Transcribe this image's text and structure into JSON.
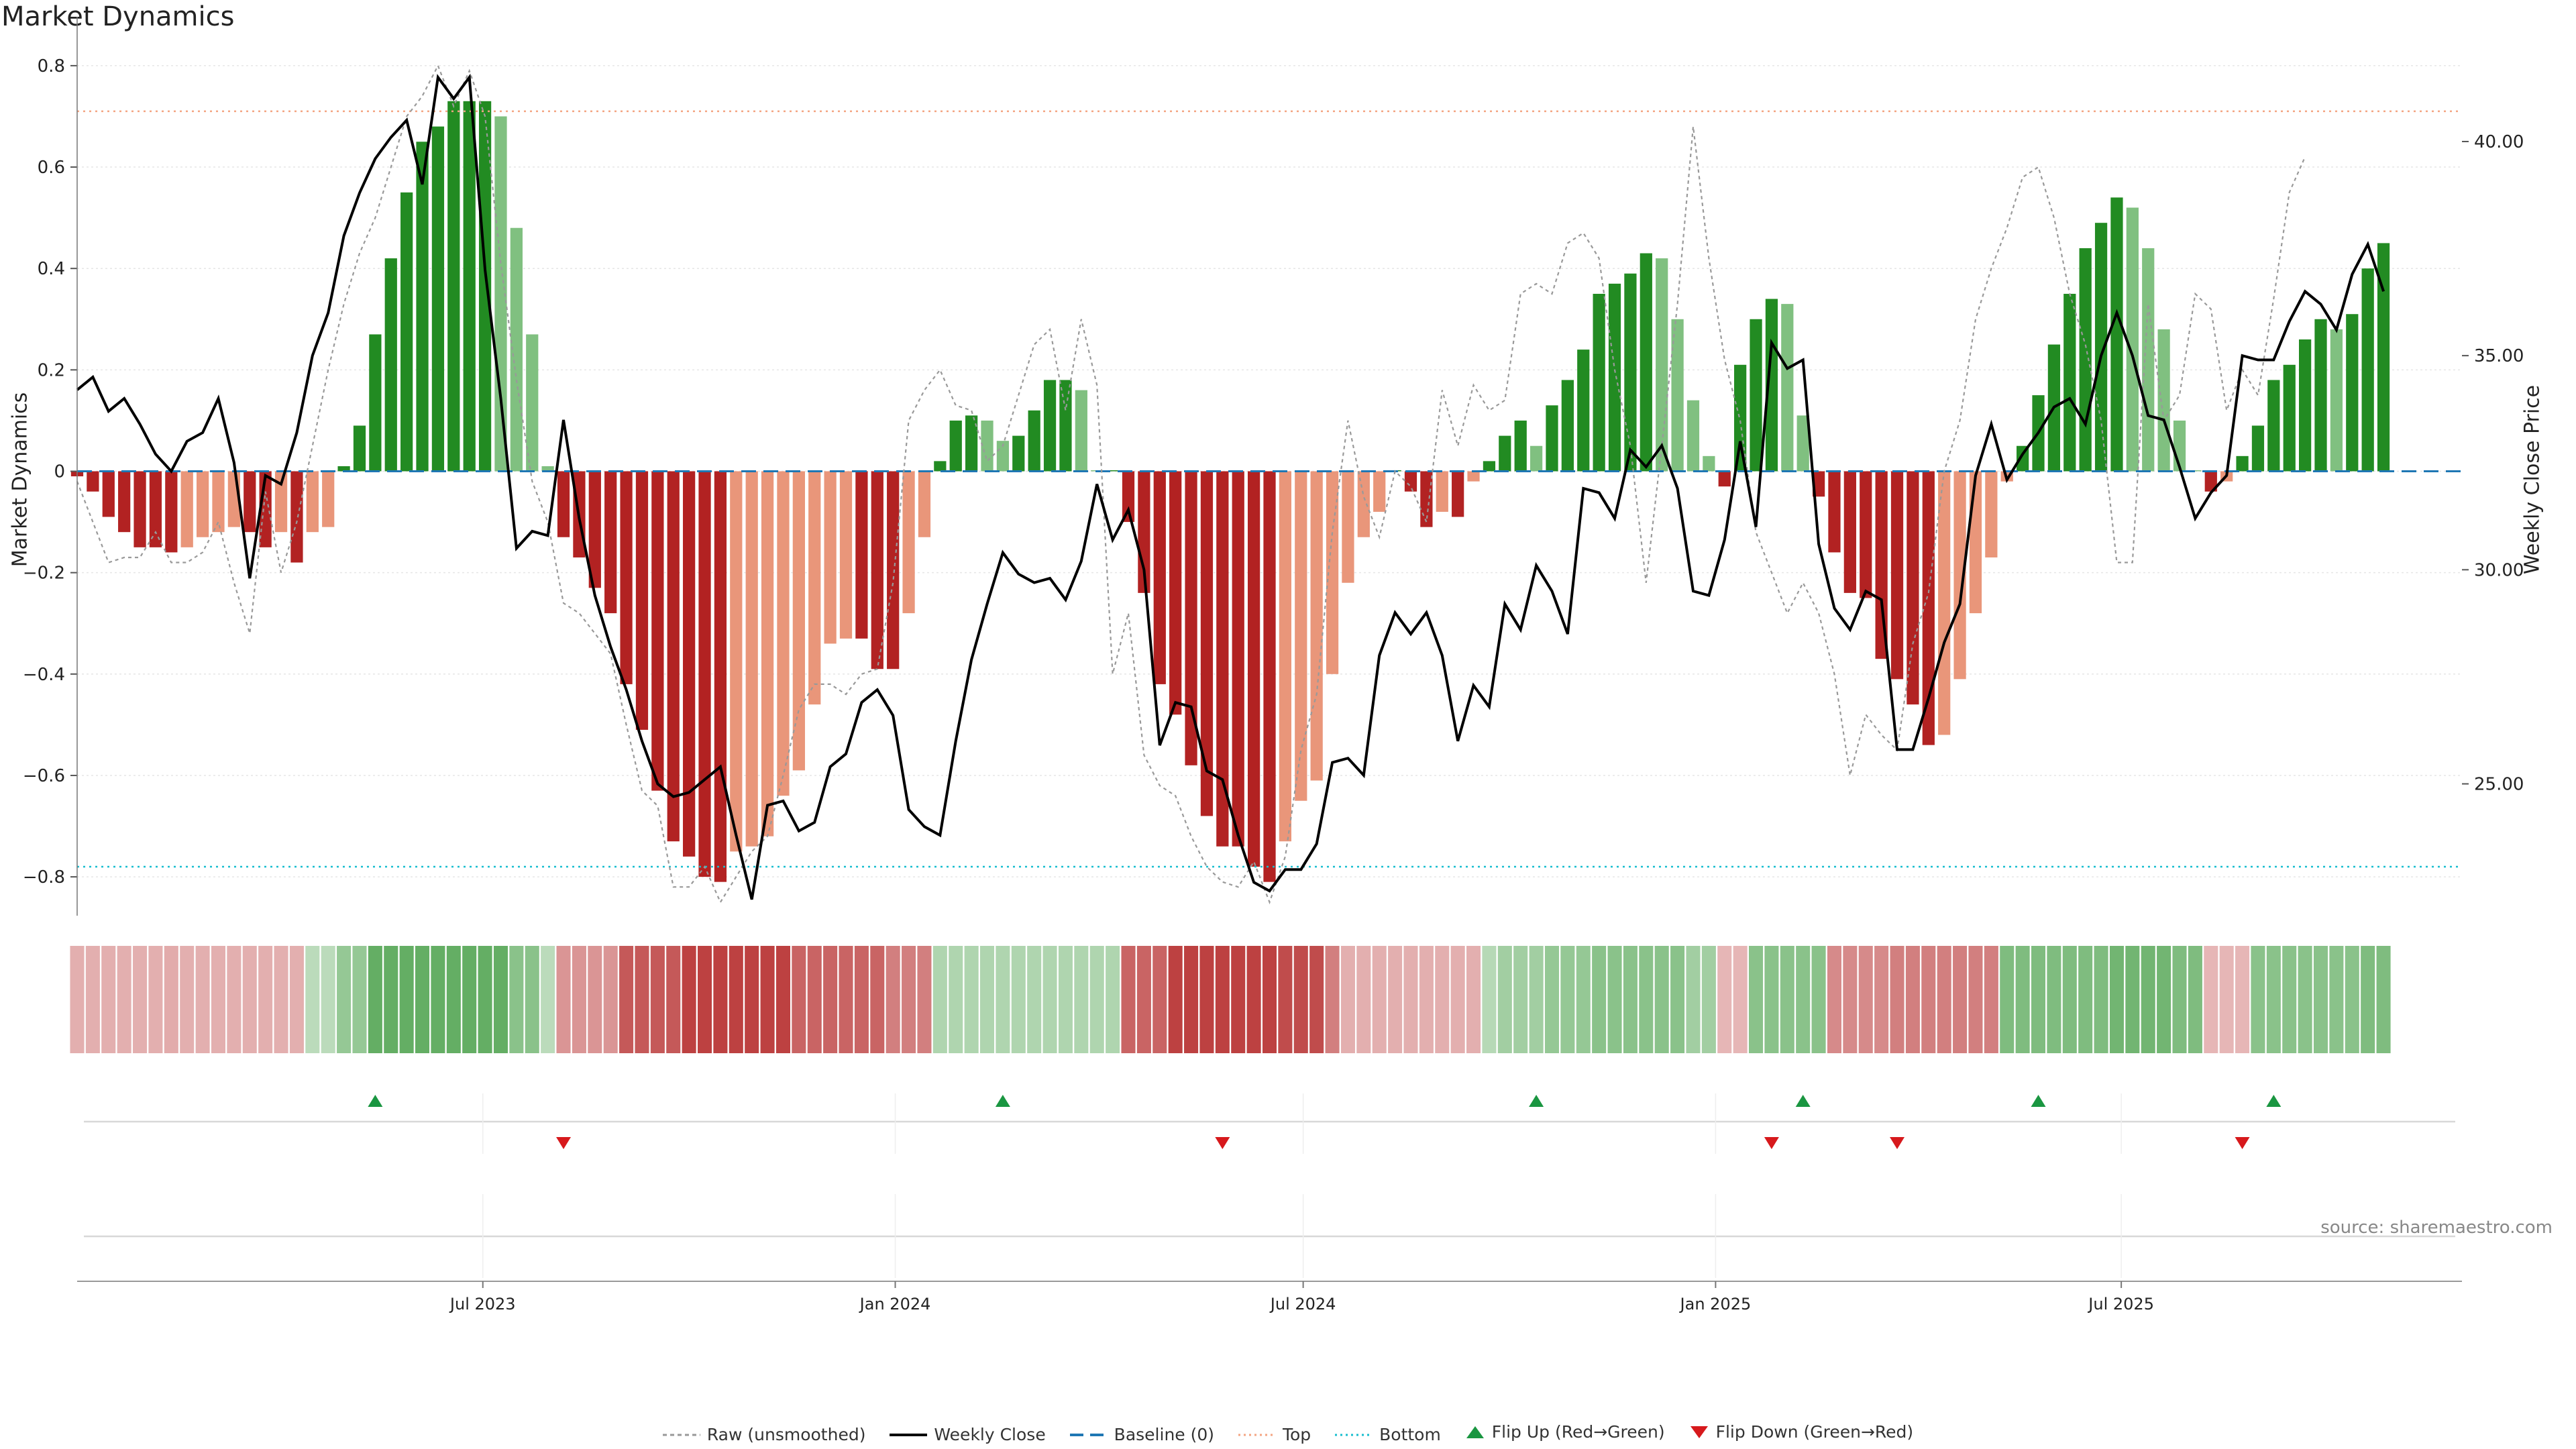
{
  "title": "Market Dynamics",
  "source_note": "source: sharemaestro.com",
  "chart_data": {
    "type": "bar",
    "title": "Market Dynamics",
    "ylabel_left": "Market Dynamics",
    "ylabel_right": "Weekly Close Price",
    "ylim_left": [
      -0.87,
      0.87
    ],
    "ylim_right": [
      22.0,
      42.6
    ],
    "left_ticks": [
      -0.8,
      -0.6,
      -0.4,
      -0.2,
      0,
      0.2,
      0.4,
      0.6,
      0.8
    ],
    "left_tick_labels": [
      "−0.8",
      "−0.6",
      "−0.4",
      "−0.2",
      "0",
      "0.2",
      "0.4",
      "0.6",
      "0.8"
    ],
    "right_ticks": [
      25,
      30,
      35,
      40
    ],
    "right_tick_labels": [
      "25.00",
      "30.00",
      "35.00",
      "40.00"
    ],
    "x_start": "2023-01-01",
    "x_end": "2025-11-30",
    "x_ticks": [
      "2023-07-01",
      "2024-01-01",
      "2024-07-01",
      "2025-01-01",
      "2025-07-01"
    ],
    "x_tick_labels": [
      "Jul 2023",
      "Jan 2024",
      "Jul 2024",
      "Jan 2025",
      "Jul 2025"
    ],
    "top_line": 0.71,
    "bottom_line": -0.78,
    "grid": true,
    "legend_position": "bottom-center",
    "colors": {
      "strong_up": "#228b22",
      "weak_up": "#80c080",
      "strong_down": "#b22222",
      "weak_down": "#e9967a",
      "close": "#000000",
      "raw": "#999999",
      "baseline": "#1f77b4",
      "top": "#f4a582",
      "bottom": "#17becf",
      "flip_up": "#1a9641",
      "flip_down": "#d7191c"
    },
    "series": [
      {
        "name": "Market Dynamics",
        "start_date": "2023-01-01",
        "step_days": 7,
        "values": [
          -0.01,
          -0.04,
          -0.09,
          -0.12,
          -0.15,
          -0.15,
          -0.16,
          -0.15,
          -0.13,
          -0.12,
          -0.11,
          -0.12,
          -0.15,
          -0.12,
          -0.18,
          -0.12,
          -0.11,
          0.01,
          0.09,
          0.27,
          0.42,
          0.55,
          0.65,
          0.68,
          0.73,
          0.73,
          0.73,
          0.7,
          0.48,
          0.27,
          0.01,
          -0.13,
          -0.17,
          -0.23,
          -0.28,
          -0.42,
          -0.51,
          -0.63,
          -0.73,
          -0.76,
          -0.8,
          -0.81,
          -0.75,
          -0.74,
          -0.72,
          -0.64,
          -0.59,
          -0.46,
          -0.34,
          -0.33,
          -0.33,
          -0.39,
          -0.39,
          -0.28,
          -0.13,
          0.02,
          0.1,
          0.11,
          0.1,
          0.06,
          0.07,
          0.12,
          0.18,
          0.18,
          0.16,
          0,
          0,
          -0.1,
          -0.24,
          -0.42,
          -0.48,
          -0.58,
          -0.68,
          -0.74,
          -0.74,
          -0.78,
          -0.81,
          -0.73,
          -0.65,
          -0.61,
          -0.4,
          -0.22,
          -0.13,
          -0.08,
          0,
          -0.04,
          -0.11,
          -0.08,
          -0.09,
          -0.02,
          0.02,
          0.07,
          0.1,
          0.05,
          0.13,
          0.18,
          0.24,
          0.35,
          0.37,
          0.39,
          0.43,
          0.42,
          0.3,
          0.14,
          0.03,
          -0.03,
          0.21,
          0.3,
          0.34,
          0.33,
          0.11,
          -0.05,
          -0.16,
          -0.24,
          -0.25,
          -0.37,
          -0.41,
          -0.46,
          -0.54,
          -0.52,
          -0.41,
          -0.28,
          -0.17,
          -0.02,
          0.05,
          0.15,
          0.25,
          0.35,
          0.44,
          0.49,
          0.54,
          0.52,
          0.44,
          0.28,
          0.1,
          0,
          -0.04,
          -0.02,
          0.03,
          0.09,
          0.18,
          0.21,
          0.26,
          0.3,
          0.28,
          0.31,
          0.4,
          0.45
        ]
      },
      {
        "name": "Weekly Close",
        "start_date": "2023-01-01",
        "step_days": 7,
        "values": [
          34.2,
          34.5,
          33.7,
          34.0,
          33.4,
          32.7,
          32.3,
          33.0,
          33.2,
          34.0,
          32.5,
          29.8,
          32.2,
          32.0,
          33.2,
          35.0,
          36.0,
          37.8,
          38.8,
          39.6,
          40.1,
          40.5,
          39.0,
          41.5,
          41.0,
          41.5,
          37.0,
          34.0,
          30.5,
          30.9,
          30.8,
          33.5,
          31.2,
          29.4,
          28.2,
          27.2,
          26.0,
          25.0,
          24.7,
          24.8,
          25.1,
          25.4,
          23.8,
          22.3,
          24.5,
          24.6,
          23.9,
          24.1,
          25.4,
          25.7,
          26.9,
          27.2,
          26.6,
          24.4,
          24.0,
          23.8,
          26.0,
          27.9,
          29.2,
          30.4,
          29.9,
          29.7,
          29.8,
          29.3,
          30.2,
          32.0,
          30.7,
          31.4,
          30.0,
          25.9,
          26.9,
          26.8,
          25.3,
          25.1,
          23.8,
          22.7,
          22.5,
          23.0,
          23.0,
          23.6,
          25.5,
          25.6,
          25.2,
          28.0,
          29.0,
          28.5,
          29.0,
          28.0,
          26.0,
          27.3,
          26.8,
          29.2,
          28.6,
          30.1,
          29.5,
          28.5,
          31.9,
          31.8,
          31.2,
          32.8,
          32.4,
          32.9,
          31.9,
          29.5,
          29.4,
          30.7,
          33.0,
          31.0,
          35.3,
          34.7,
          34.9,
          30.6,
          29.1,
          28.6,
          29.5,
          29.3,
          25.8,
          25.8,
          27.0,
          28.3,
          29.2,
          32.2,
          33.4,
          32.1,
          32.7,
          33.2,
          33.8,
          34.0,
          33.4,
          35.0,
          36.0,
          35.0,
          33.6,
          33.5,
          32.4,
          31.2,
          31.8,
          32.2,
          35.0,
          34.9,
          34.9,
          35.8,
          36.5,
          36.2,
          35.6,
          36.9,
          37.6,
          36.5
        ]
      },
      {
        "name": "Raw (unsmoothed)",
        "start_date": "2023-01-01",
        "step_days": 7,
        "values": [
          -0.02,
          -0.1,
          -0.18,
          -0.17,
          -0.17,
          -0.12,
          -0.18,
          -0.18,
          -0.16,
          -0.1,
          -0.22,
          -0.32,
          -0.04,
          -0.2,
          -0.1,
          0.05,
          0.2,
          0.33,
          0.43,
          0.5,
          0.6,
          0.7,
          0.74,
          0.8,
          0.72,
          0.79,
          0.7,
          0.41,
          0.18,
          -0.02,
          -0.1,
          -0.26,
          -0.28,
          -0.32,
          -0.36,
          -0.5,
          -0.63,
          -0.66,
          -0.82,
          -0.82,
          -0.78,
          -0.85,
          -0.8,
          -0.75,
          -0.72,
          -0.6,
          -0.47,
          -0.42,
          -0.42,
          -0.44,
          -0.4,
          -0.39,
          -0.22,
          0.1,
          0.16,
          0.2,
          0.13,
          0.12,
          0.02,
          0.05,
          0.15,
          0.25,
          0.28,
          0.12,
          0.3,
          0.17,
          -0.4,
          -0.28,
          -0.56,
          -0.62,
          -0.64,
          -0.72,
          -0.78,
          -0.81,
          -0.82,
          -0.77,
          -0.85,
          -0.76,
          -0.55,
          -0.44,
          -0.12,
          0.1,
          -0.05,
          -0.13,
          0.0,
          -0.03,
          -0.1,
          0.16,
          0.05,
          0.17,
          0.12,
          0.14,
          0.35,
          0.37,
          0.35,
          0.45,
          0.47,
          0.42,
          0.2,
          0.05,
          -0.22,
          0.05,
          0.33,
          0.68,
          0.42,
          0.22,
          0.1,
          -0.12,
          -0.2,
          -0.28,
          -0.22,
          -0.28,
          -0.4,
          -0.6,
          -0.48,
          -0.52,
          -0.55,
          -0.34,
          -0.24,
          0.0,
          0.1,
          0.3,
          0.4,
          0.48,
          0.58,
          0.6,
          0.5,
          0.35,
          0.25,
          0.1,
          -0.18,
          -0.18,
          0.33,
          0.1,
          0.15,
          0.35,
          0.32,
          0.12,
          0.2,
          0.15,
          0.34,
          0.55,
          0.62
        ]
      }
    ],
    "regime_strip": {
      "start_date": "2023-01-01",
      "step_days": 7,
      "values": [
        -0.15,
        -0.15,
        -0.15,
        -0.15,
        -0.15,
        -0.15,
        -0.16,
        -0.15,
        -0.15,
        -0.15,
        -0.15,
        -0.15,
        -0.15,
        -0.15,
        -0.15,
        0.1,
        0.1,
        0.25,
        0.25,
        0.45,
        0.45,
        0.45,
        0.45,
        0.45,
        0.45,
        0.45,
        0.45,
        0.45,
        0.3,
        0.3,
        0.1,
        -0.25,
        -0.25,
        -0.25,
        -0.25,
        -0.5,
        -0.5,
        -0.5,
        -0.5,
        -0.6,
        -0.6,
        -0.6,
        -0.6,
        -0.6,
        -0.6,
        -0.6,
        -0.45,
        -0.45,
        -0.45,
        -0.45,
        -0.45,
        -0.45,
        -0.35,
        -0.35,
        -0.35,
        0.15,
        0.15,
        0.15,
        0.15,
        0.15,
        0.15,
        0.15,
        0.15,
        0.15,
        0.15,
        0.15,
        0.15,
        -0.45,
        -0.45,
        -0.45,
        -0.6,
        -0.6,
        -0.6,
        -0.6,
        -0.6,
        -0.6,
        -0.6,
        -0.55,
        -0.55,
        -0.55,
        -0.35,
        -0.15,
        -0.15,
        -0.15,
        -0.15,
        -0.15,
        -0.15,
        -0.15,
        -0.15,
        -0.15,
        0.12,
        0.2,
        0.2,
        0.2,
        0.25,
        0.25,
        0.25,
        0.3,
        0.3,
        0.3,
        0.3,
        0.3,
        0.3,
        0.2,
        0.2,
        -0.12,
        -0.12,
        0.3,
        0.3,
        0.3,
        0.3,
        0.3,
        -0.3,
        -0.3,
        -0.3,
        -0.3,
        -0.35,
        -0.35,
        -0.35,
        -0.35,
        -0.35,
        -0.35,
        -0.35,
        0.35,
        0.35,
        0.35,
        0.35,
        0.35,
        0.35,
        0.35,
        0.4,
        0.4,
        0.4,
        0.4,
        0.35,
        0.35,
        -0.12,
        -0.12,
        -0.12,
        0.3,
        0.3,
        0.3,
        0.3,
        0.3,
        0.3,
        0.3,
        0.35,
        0.35
      ]
    },
    "flip_up_dates": [
      "2023-05-14",
      "2024-02-18",
      "2024-10-13",
      "2025-02-09",
      "2025-05-25",
      "2025-09-07"
    ],
    "flip_down_dates": [
      "2023-08-06",
      "2024-05-26",
      "2025-01-26",
      "2025-03-23",
      "2025-08-24"
    ]
  },
  "legend": {
    "raw": "Raw (unsmoothed)",
    "close": "Weekly Close",
    "baseline": "Baseline (0)",
    "top": "Top",
    "bottom": "Bottom",
    "flip_up": "Flip Up (Red→Green)",
    "flip_down": "Flip Down (Green→Red)"
  }
}
